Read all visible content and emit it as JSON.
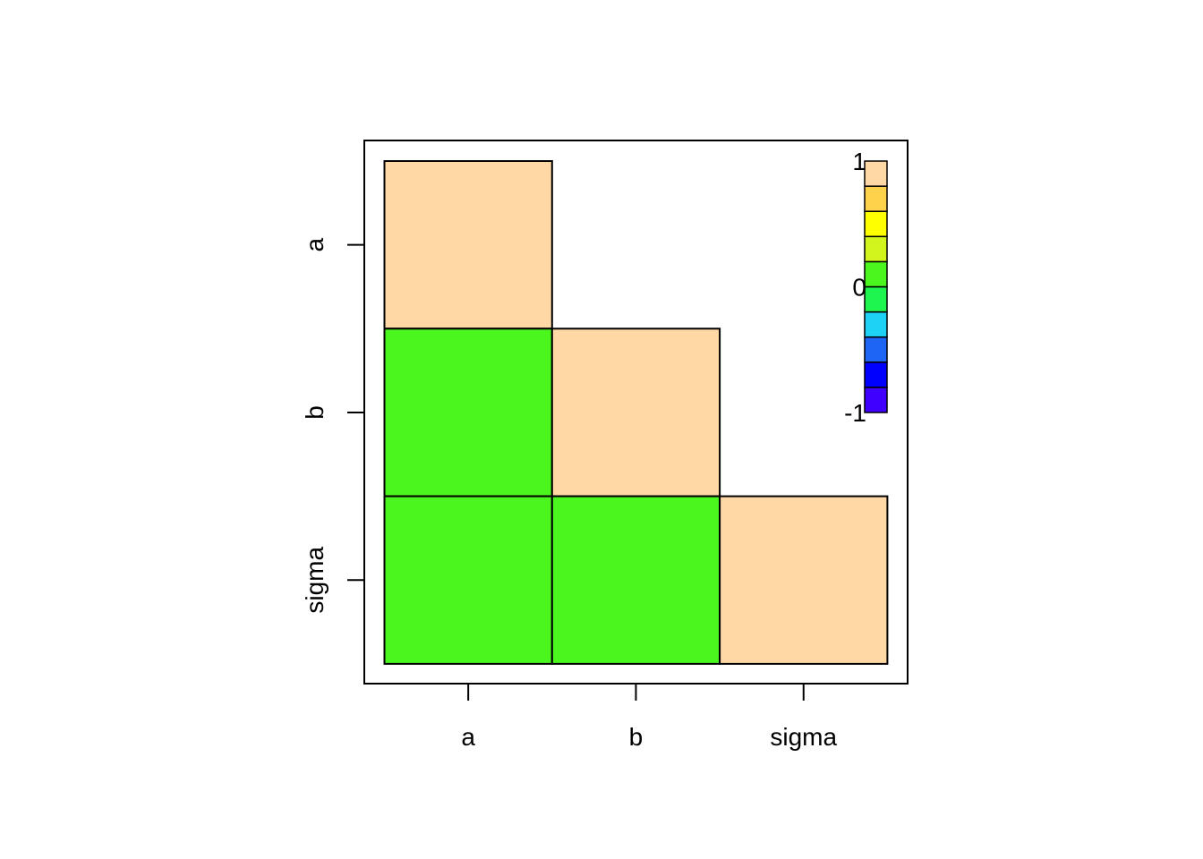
{
  "chart_data": {
    "type": "heatmap",
    "title": "",
    "xlabel": "",
    "ylabel": "",
    "variables": [
      "a",
      "b",
      "sigma"
    ],
    "layout": "lower-triangle",
    "cells": [
      {
        "row": "a",
        "col": "a",
        "value": 1
      },
      {
        "row": "b",
        "col": "a",
        "value": 0.1
      },
      {
        "row": "b",
        "col": "b",
        "value": 1
      },
      {
        "row": "sigma",
        "col": "a",
        "value": 0.1
      },
      {
        "row": "sigma",
        "col": "b",
        "value": 0.1
      },
      {
        "row": "sigma",
        "col": "sigma",
        "value": 1
      }
    ],
    "legend": {
      "placement": "top-right",
      "range": [
        -1,
        1
      ],
      "tick_labels": [
        "1",
        "0",
        "-1"
      ],
      "tick_values": [
        1,
        0,
        -1
      ],
      "colors_bottom_to_top": [
        "#4000FF",
        "#0000FF",
        "#1E64F5",
        "#1ED2F5",
        "#1EF54E",
        "#4BF51E",
        "#D2F51E",
        "#FFFF00",
        "#FFD24B",
        "#FFD8A6"
      ]
    },
    "grid": false
  }
}
